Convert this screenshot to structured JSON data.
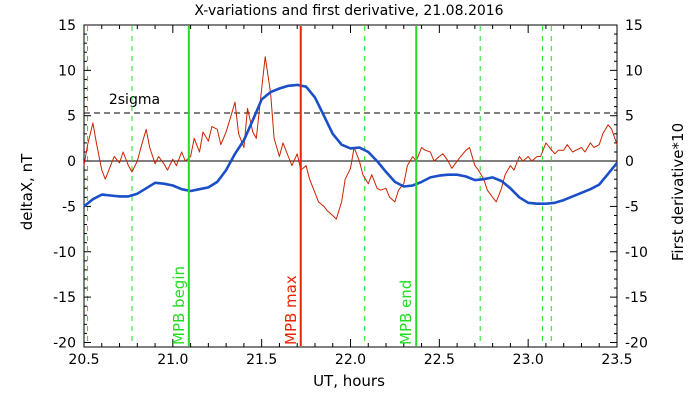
{
  "chart_data": {
    "type": "line",
    "title": "X-variations and first derivative, 21.08.2016",
    "xlabel": "UT, hours",
    "ylabel_left": "deltaX, nT",
    "ylabel_right": "First derivative*10",
    "xlim": [
      20.5,
      23.5
    ],
    "ylim": [
      -20.5,
      15
    ],
    "x_ticks": [
      "20.5",
      "21.0",
      "21.5",
      "22.0",
      "22.5",
      "23.0",
      "23.5"
    ],
    "y_ticks": [
      "15",
      "10",
      "5",
      "0",
      "-5",
      "-10",
      "-15",
      "-20"
    ],
    "colors": {
      "left_axis": "#1a4fc8",
      "right_axis": "#cc2200",
      "mpb_lines": "#22dd22",
      "mpb_max": "#ee2200"
    },
    "sigma_line": {
      "label": "2sigma",
      "y": 5.3
    },
    "dashed_verticals_x": [
      20.52,
      20.77,
      22.08,
      22.73,
      23.08,
      23.13
    ],
    "markers": [
      {
        "label": "MPB begin",
        "x": 21.09,
        "color": "#22dd22"
      },
      {
        "label": "MPB max",
        "x": 21.72,
        "color": "#ee2200"
      },
      {
        "label": "MPB end",
        "x": 22.37,
        "color": "#22dd22"
      }
    ],
    "series": [
      {
        "color": "#1a4fc8",
        "axis": "left",
        "x": [
          20.5,
          20.55,
          20.6,
          20.65,
          20.7,
          20.75,
          20.8,
          20.85,
          20.9,
          20.95,
          21.0,
          21.05,
          21.1,
          21.15,
          21.2,
          21.25,
          21.3,
          21.35,
          21.4,
          21.45,
          21.5,
          21.55,
          21.6,
          21.65,
          21.7,
          21.75,
          21.8,
          21.85,
          21.9,
          21.95,
          22.0,
          22.05,
          22.1,
          22.15,
          22.2,
          22.25,
          22.3,
          22.35,
          22.4,
          22.45,
          22.5,
          22.55,
          22.6,
          22.65,
          22.7,
          22.75,
          22.8,
          22.85,
          22.9,
          22.95,
          23.0,
          23.05,
          23.1,
          23.15,
          23.2,
          23.25,
          23.3,
          23.35,
          23.4,
          23.45,
          23.5
        ],
        "y": [
          -5.0,
          -4.2,
          -3.7,
          -3.8,
          -3.9,
          -3.9,
          -3.6,
          -3.0,
          -2.4,
          -2.5,
          -2.7,
          -3.1,
          -3.3,
          -3.1,
          -2.9,
          -2.3,
          -1.0,
          0.8,
          2.3,
          4.5,
          6.8,
          7.6,
          8.0,
          8.3,
          8.4,
          8.2,
          7.0,
          5.0,
          3.0,
          1.8,
          1.4,
          1.5,
          1.0,
          0.0,
          -1.2,
          -2.3,
          -2.8,
          -2.7,
          -2.3,
          -1.8,
          -1.6,
          -1.5,
          -1.5,
          -1.7,
          -2.1,
          -2.0,
          -1.8,
          -2.2,
          -3.0,
          -4.0,
          -4.6,
          -4.7,
          -4.7,
          -4.6,
          -4.3,
          -3.9,
          -3.5,
          -3.1,
          -2.6,
          -1.4,
          -0.2
        ]
      },
      {
        "color": "#cc2200",
        "axis": "right",
        "x": [
          20.5,
          20.52,
          20.55,
          20.57,
          20.6,
          20.62,
          20.65,
          20.67,
          20.7,
          20.72,
          20.75,
          20.77,
          20.8,
          20.82,
          20.85,
          20.87,
          20.9,
          20.92,
          20.95,
          20.97,
          21.0,
          21.02,
          21.05,
          21.07,
          21.1,
          21.12,
          21.15,
          21.17,
          21.2,
          21.22,
          21.25,
          21.27,
          21.3,
          21.32,
          21.35,
          21.37,
          21.4,
          21.42,
          21.45,
          21.47,
          21.5,
          21.52,
          21.55,
          21.57,
          21.6,
          21.62,
          21.65,
          21.67,
          21.7,
          21.72,
          21.75,
          21.77,
          21.8,
          21.82,
          21.85,
          21.87,
          21.9,
          21.92,
          21.95,
          21.97,
          22.0,
          22.02,
          22.05,
          22.07,
          22.1,
          22.12,
          22.15,
          22.17,
          22.2,
          22.22,
          22.25,
          22.27,
          22.3,
          22.32,
          22.35,
          22.37,
          22.4,
          22.42,
          22.45,
          22.47,
          22.5,
          22.52,
          22.55,
          22.57,
          22.6,
          22.62,
          22.65,
          22.67,
          22.7,
          22.72,
          22.75,
          22.77,
          22.8,
          22.82,
          22.85,
          22.87,
          22.9,
          22.92,
          22.95,
          22.97,
          23.0,
          23.02,
          23.05,
          23.07,
          23.1,
          23.12,
          23.15,
          23.17,
          23.2,
          23.22,
          23.25,
          23.27,
          23.3,
          23.32,
          23.35,
          23.37,
          23.4,
          23.42,
          23.45,
          23.47,
          23.5
        ],
        "y": [
          -0.5,
          1.8,
          4.2,
          2.0,
          -1.0,
          -2.0,
          -0.5,
          0.5,
          -0.2,
          1.0,
          -0.5,
          -1.2,
          0.0,
          1.5,
          3.5,
          1.5,
          -0.3,
          0.5,
          -0.3,
          -1.0,
          0.2,
          -0.5,
          1.0,
          0.0,
          0.5,
          2.5,
          1.0,
          3.2,
          2.2,
          3.8,
          3.5,
          1.8,
          3.2,
          4.5,
          6.5,
          3.0,
          1.5,
          5.8,
          3.2,
          2.5,
          8.0,
          11.5,
          7.5,
          2.5,
          0.5,
          2.0,
          0.5,
          -0.5,
          0.8,
          -1.0,
          -0.5,
          -2.0,
          -3.5,
          -4.5,
          -5.0,
          -5.5,
          -6.0,
          -6.4,
          -4.5,
          -2.0,
          -0.8,
          1.5,
          0.0,
          -1.5,
          -2.5,
          -1.5,
          -3.0,
          -3.2,
          -3.0,
          -4.0,
          -4.5,
          -3.2,
          -2.5,
          -0.5,
          0.5,
          0.0,
          1.5,
          1.2,
          1.0,
          0.0,
          0.5,
          0.8,
          0.0,
          -0.8,
          0.0,
          0.5,
          1.2,
          1.5,
          -0.5,
          -1.0,
          -2.0,
          -3.2,
          -4.0,
          -4.5,
          -3.0,
          -1.5,
          -0.5,
          -1.0,
          0.5,
          0.0,
          0.5,
          0.0,
          0.5,
          0.5,
          2.0,
          1.5,
          0.8,
          1.2,
          1.2,
          1.8,
          1.0,
          1.2,
          1.5,
          1.0,
          2.0,
          1.5,
          1.8,
          3.0,
          4.0,
          3.5,
          1.8
        ]
      }
    ]
  }
}
